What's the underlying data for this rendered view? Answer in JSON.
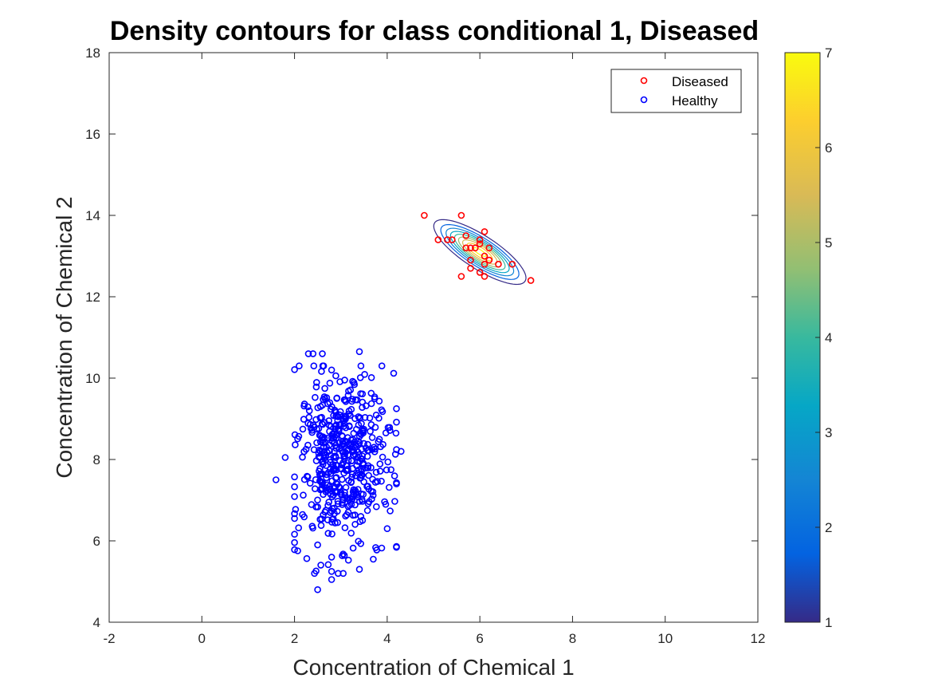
{
  "chart_data": {
    "type": "scatter",
    "title": "Density contours for class conditional 1, Diseased",
    "xlabel": "Concentration of Chemical 1",
    "ylabel": "Concentration of Chemical 2",
    "xlim": [
      -2,
      12
    ],
    "ylim": [
      4,
      18
    ],
    "x_ticks": [
      "-2",
      "0",
      "2",
      "4",
      "6",
      "8",
      "10",
      "12"
    ],
    "y_ticks": [
      "4",
      "6",
      "8",
      "10",
      "12",
      "14",
      "16",
      "18"
    ],
    "grid": false,
    "legend": {
      "placement": "top-right",
      "entries": [
        "Diseased",
        "Healthy"
      ]
    },
    "colorbar": {
      "min": 1,
      "max": 7,
      "ticks": [
        "1",
        "2",
        "3",
        "4",
        "5",
        "6",
        "7"
      ],
      "colormap": "parula"
    },
    "contours": {
      "center": [
        6.0,
        13.1
      ],
      "covariance": [
        [
          0.25,
          -0.16
        ],
        [
          -0.16,
          0.16
        ]
      ],
      "levels": [
        1.0,
        1.75,
        2.5,
        3.25,
        4.0,
        4.75,
        5.5,
        6.25,
        7.0
      ],
      "peak": 7.25
    },
    "series": [
      {
        "name": "Diseased",
        "color": "#ff0000",
        "points": [
          [
            4.8,
            14.0
          ],
          [
            5.6,
            14.0
          ],
          [
            5.1,
            13.4
          ],
          [
            5.3,
            13.4
          ],
          [
            5.4,
            13.4
          ],
          [
            5.7,
            13.5
          ],
          [
            6.1,
            13.6
          ],
          [
            6.0,
            13.4
          ],
          [
            5.9,
            13.2
          ],
          [
            5.8,
            13.2
          ],
          [
            5.7,
            13.2
          ],
          [
            6.0,
            13.3
          ],
          [
            6.2,
            13.2
          ],
          [
            6.1,
            13.0
          ],
          [
            6.2,
            12.9
          ],
          [
            5.8,
            12.9
          ],
          [
            6.1,
            12.8
          ],
          [
            5.8,
            12.7
          ],
          [
            6.0,
            12.6
          ],
          [
            6.1,
            12.5
          ],
          [
            5.6,
            12.5
          ],
          [
            6.4,
            12.8
          ],
          [
            6.7,
            12.8
          ],
          [
            7.1,
            12.4
          ]
        ]
      },
      {
        "name": "Healthy",
        "color": "#0000ff",
        "n": 500,
        "mean": [
          3.05,
          8.0
        ],
        "sd": [
          0.5,
          1.05
        ],
        "seed": 7,
        "outliers": [
          [
            1.6,
            7.5
          ],
          [
            2.5,
            4.8
          ],
          [
            2.8,
            5.05
          ],
          [
            2.8,
            5.25
          ],
          [
            3.4,
            5.3
          ],
          [
            2.8,
            5.6
          ],
          [
            2.4,
            10.6
          ],
          [
            2.3,
            10.6
          ],
          [
            2.6,
            10.6
          ],
          [
            3.4,
            10.65
          ],
          [
            2.1,
            10.3
          ],
          [
            2.8,
            10.2
          ],
          [
            4.2,
            9.25
          ],
          [
            4.3,
            8.2
          ],
          [
            4.2,
            7.4
          ],
          [
            1.8,
            8.05
          ],
          [
            2.0,
            6.55
          ],
          [
            3.7,
            5.55
          ],
          [
            2.5,
            5.9
          ],
          [
            4.0,
            6.3
          ]
        ]
      }
    ]
  }
}
